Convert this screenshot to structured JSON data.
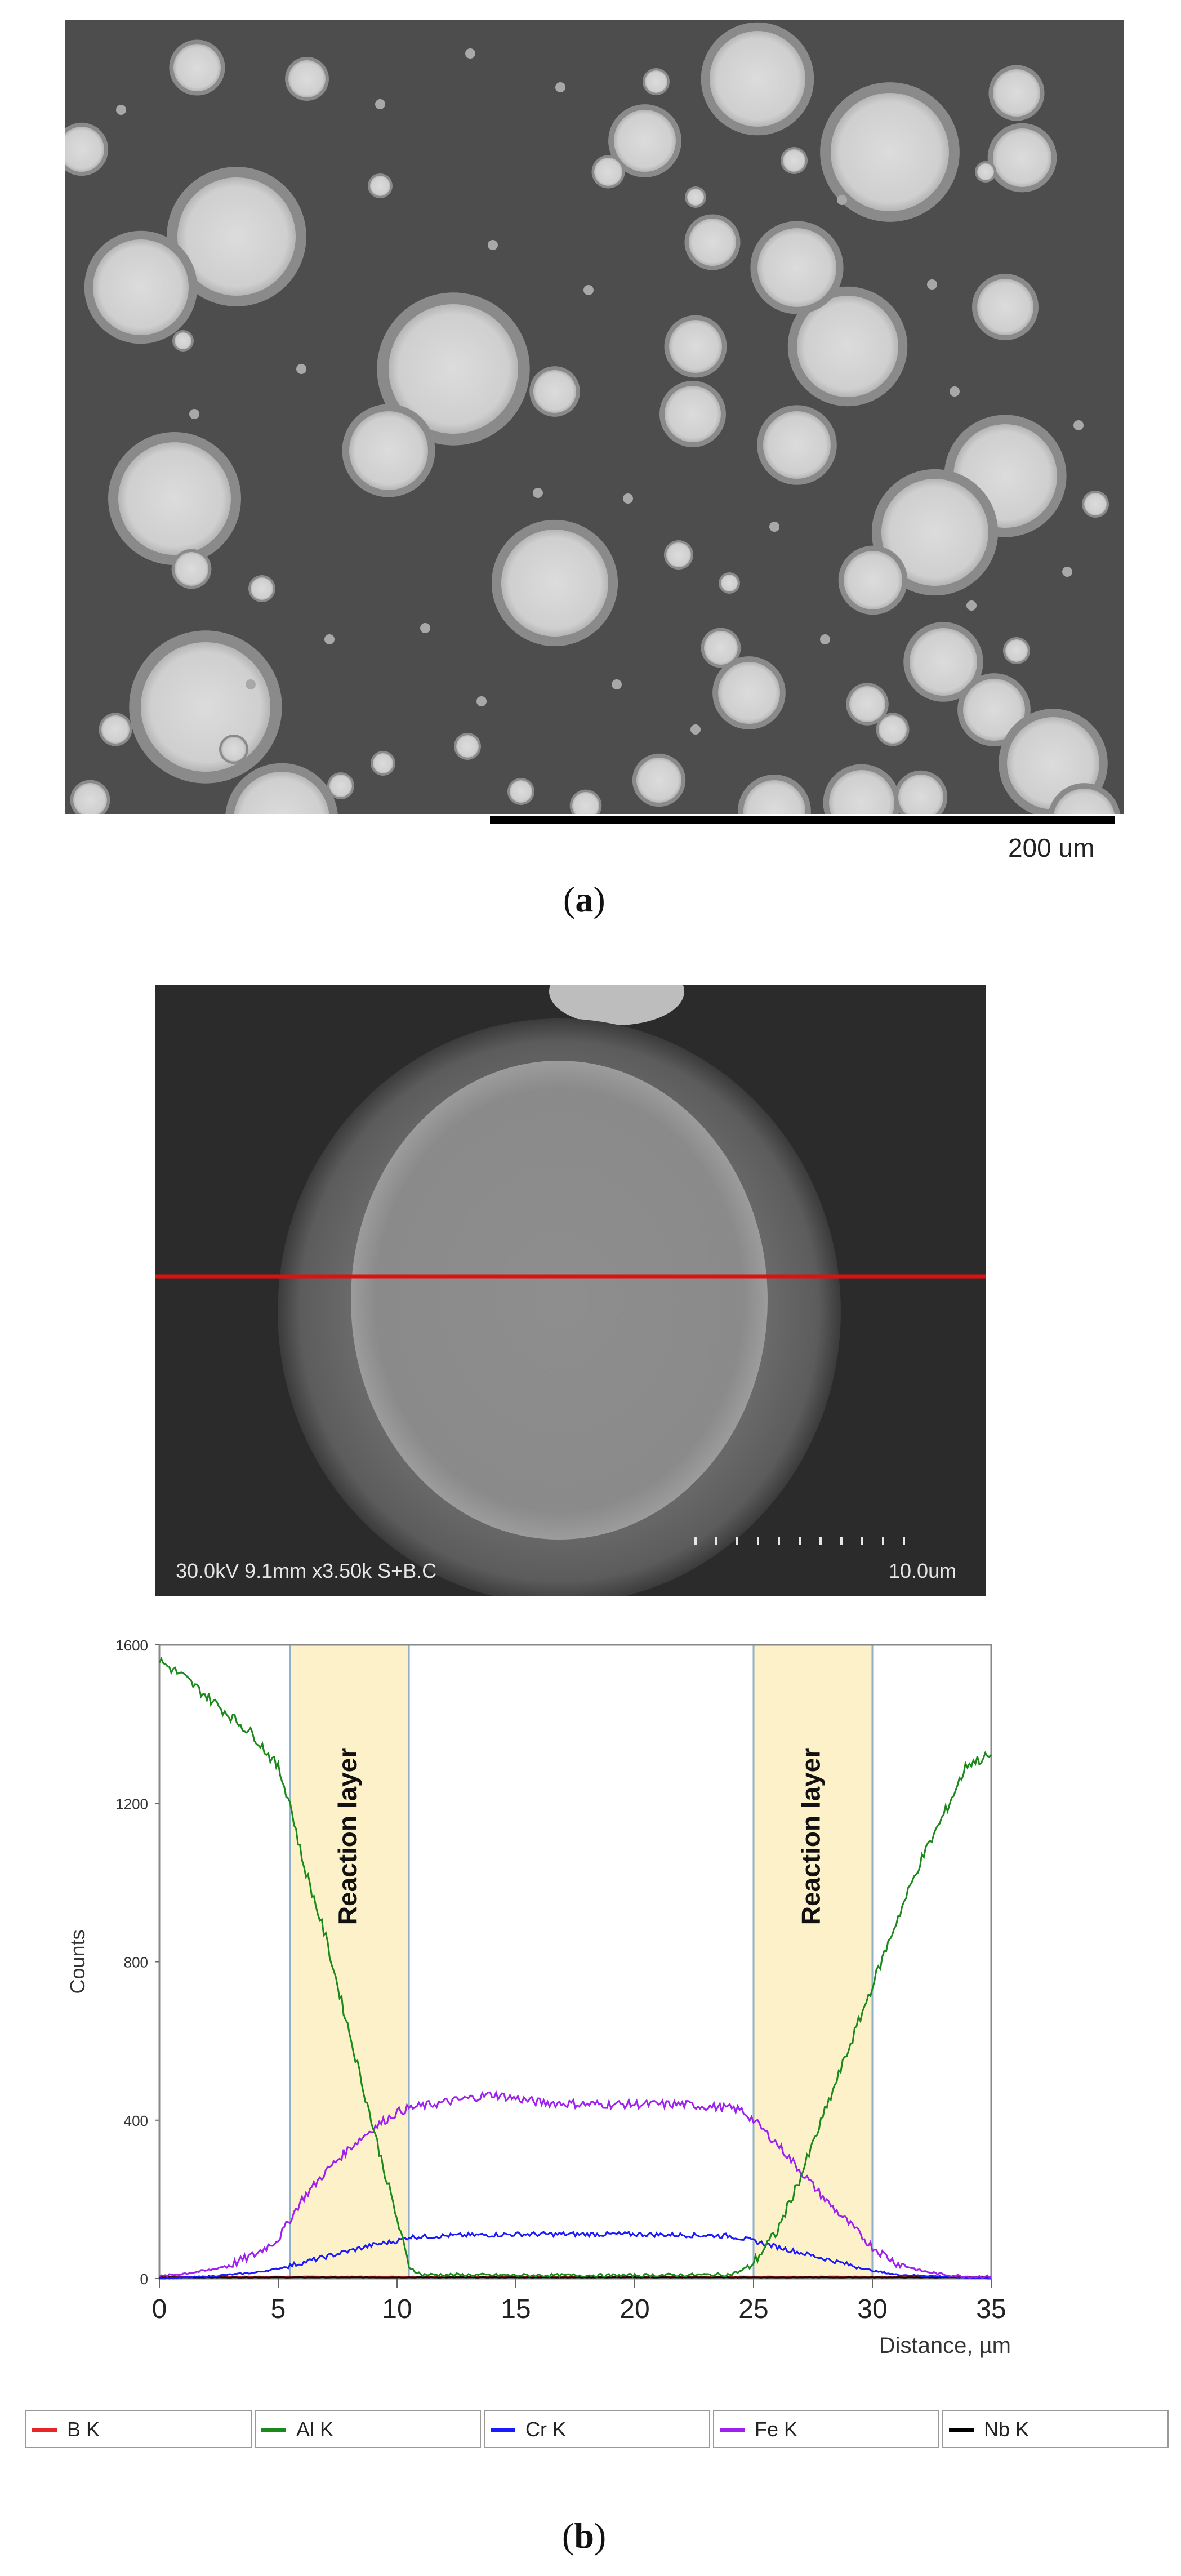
{
  "panel_a": {
    "scale_label": "200 um",
    "caption_open": "(",
    "caption_letter": "a",
    "caption_close": ")"
  },
  "panel_b": {
    "sem_info": "30.0kV 9.1mm x3.50k S+B.C",
    "sem_scale": "10.0um",
    "caption_open": "(",
    "caption_letter": "b",
    "caption_close": ")"
  },
  "colors": {
    "B K": "#e8262a",
    "Al K": "#1a8a1a",
    "Cr K": "#1a1aff",
    "Fe K": "#a020f0",
    "Nb K": "#000000",
    "reaction_fill": "#fcf1c9",
    "reaction_edge": "#8fb0c8",
    "scan_line": "#e01010"
  },
  "chart_data": {
    "type": "line",
    "xlabel": "Distance, µm",
    "ylabel": "Counts",
    "xlim": [
      0,
      35
    ],
    "ylim": [
      0,
      1600
    ],
    "xticks": [
      0,
      5,
      10,
      15,
      20,
      25,
      30,
      35
    ],
    "yticks": [
      0,
      400,
      800,
      1200,
      1600
    ],
    "annotations": [
      {
        "text": "Reaction layer",
        "x_range": [
          5.5,
          10.5
        ]
      },
      {
        "text": "Reaction layer",
        "x_range": [
          25,
          30
        ]
      }
    ],
    "series": [
      {
        "name": "B K",
        "x": [
          0,
          35
        ],
        "y": [
          5,
          5
        ]
      },
      {
        "name": "Al K",
        "x": [
          0,
          1,
          2,
          3,
          4,
          5,
          5.5,
          6,
          7,
          8,
          9,
          10,
          10.5,
          11,
          15,
          20,
          24,
          24.5,
          25,
          26,
          27,
          28,
          29,
          30,
          31,
          32,
          33,
          34,
          35
        ],
        "y": [
          1560,
          1520,
          1470,
          1420,
          1370,
          1290,
          1200,
          1060,
          860,
          620,
          380,
          150,
          30,
          10,
          8,
          8,
          10,
          20,
          40,
          120,
          260,
          420,
          580,
          740,
          900,
          1050,
          1170,
          1300,
          1320
        ]
      },
      {
        "name": "Cr K",
        "x": [
          0,
          2,
          4,
          5,
          6,
          7,
          8,
          9,
          10,
          10.5,
          12,
          15,
          20,
          24,
          25,
          26,
          27,
          28,
          29,
          30,
          31,
          33,
          35
        ],
        "y": [
          0,
          5,
          15,
          25,
          40,
          55,
          70,
          85,
          95,
          105,
          108,
          112,
          112,
          108,
          95,
          80,
          65,
          50,
          35,
          20,
          10,
          5,
          0
        ]
      },
      {
        "name": "Fe K",
        "x": [
          0,
          2,
          3,
          4,
          5,
          5.5,
          6,
          7,
          8,
          9,
          10,
          10.5,
          12,
          14,
          16,
          18,
          20,
          22,
          24,
          24.5,
          25,
          26,
          27,
          28,
          29,
          30,
          31,
          32,
          33,
          34,
          35
        ],
        "y": [
          5,
          20,
          35,
          60,
          100,
          150,
          200,
          270,
          330,
          380,
          420,
          430,
          445,
          465,
          445,
          440,
          440,
          440,
          430,
          425,
          400,
          340,
          270,
          200,
          140,
          80,
          40,
          20,
          10,
          5,
          5
        ]
      },
      {
        "name": "Nb K",
        "x": [
          0,
          35
        ],
        "y": [
          3,
          3
        ]
      }
    ]
  },
  "legend": [
    {
      "label": "B K"
    },
    {
      "label": "Al K"
    },
    {
      "label": "Cr K"
    },
    {
      "label": "Fe K"
    },
    {
      "label": "Nb K"
    }
  ]
}
